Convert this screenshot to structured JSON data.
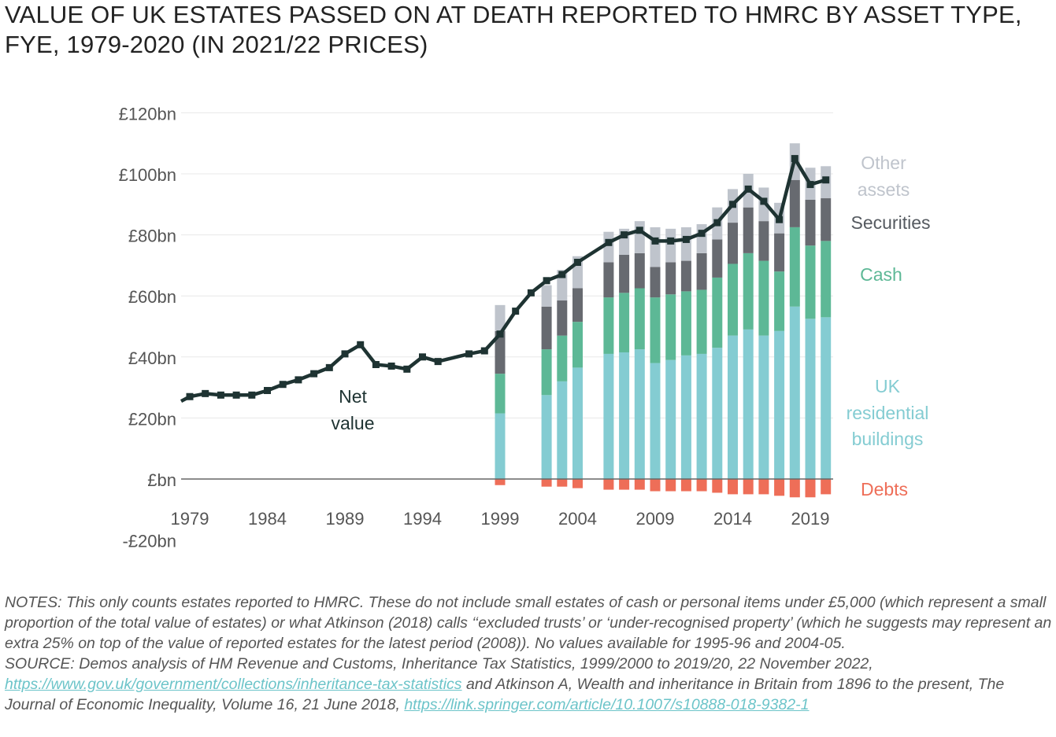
{
  "title": "VALUE OF UK ESTATES PASSED ON AT DEATH REPORTED TO HMRC BY ASSET TYPE, FYE, 1979-2020 (IN 2021/22 PRICES)",
  "chart_data": {
    "type": "bar",
    "stacked": true,
    "title": "VALUE OF UK ESTATES PASSED ON AT DEATH REPORTED TO HMRC BY ASSET TYPE, FYE, 1979-2020 (IN 2021/22 PRICES)",
    "xlabel": "",
    "ylabel": "",
    "ylim": [
      -20,
      120
    ],
    "y_ticks": [
      -20,
      0,
      20,
      40,
      60,
      80,
      100,
      120
    ],
    "y_tick_labels": [
      "-£20bn",
      "£bn",
      "£20bn",
      "£40bn",
      "£60bn",
      "£80bn",
      "£100bn",
      "£120bn"
    ],
    "x_tick_labels": [
      "1979",
      "1984",
      "1989",
      "1994",
      "1999",
      "2004",
      "2009",
      "2014",
      "2019"
    ],
    "legend_position": "right",
    "colors": {
      "uk_residential": "#84ccd2",
      "cash": "#5db896",
      "securities": "#676a70",
      "other": "#bfc4cc",
      "debts": "#ee6e58",
      "net": "#1e3332"
    },
    "categories": [
      "1999",
      "2002",
      "2003",
      "2004",
      "2006",
      "2007",
      "2008",
      "2009",
      "2010",
      "2011",
      "2012",
      "2013",
      "2014",
      "2015",
      "2016",
      "2017",
      "2018",
      "2019",
      "2020"
    ],
    "series": [
      {
        "name": "UK residential buildings",
        "values": [
          21.5,
          27.5,
          32,
          36.5,
          41,
          41.5,
          42.5,
          38,
          39,
          40.5,
          41,
          43,
          47,
          49,
          47,
          48.5,
          56.5,
          52.5,
          53
        ]
      },
      {
        "name": "Cash",
        "values": [
          13,
          15,
          15,
          15,
          18.5,
          19.5,
          20,
          21.5,
          21.5,
          21,
          21,
          23,
          23.5,
          25,
          24.5,
          19.5,
          26,
          24,
          25
        ]
      },
      {
        "name": "Securities",
        "values": [
          14,
          14,
          11.5,
          11,
          11.5,
          12.5,
          11.5,
          10,
          10.5,
          10,
          12,
          12.5,
          13.5,
          15,
          13,
          12.5,
          15.5,
          15,
          14
        ]
      },
      {
        "name": "Other assets",
        "values": [
          8.5,
          7,
          10,
          10.5,
          10,
          8.5,
          10.5,
          13,
          11,
          11,
          9.5,
          10.5,
          11,
          11,
          11,
          10,
          12,
          10.5,
          10.5
        ]
      },
      {
        "name": "Debts",
        "values": [
          -2,
          -2.5,
          -2.5,
          -3,
          -3.5,
          -3.5,
          -3.5,
          -4,
          -4,
          -4,
          -4,
          -4.5,
          -5,
          -5,
          -5,
          -5.5,
          -6,
          -6,
          -5
        ]
      }
    ],
    "net_value": {
      "name": "Net value",
      "x": [
        1978,
        1979,
        1980,
        1981,
        1982,
        1983,
        1984,
        1985,
        1986,
        1987,
        1988,
        1989,
        1990,
        1991,
        1992,
        1993,
        1994,
        1995,
        1997,
        1998,
        1999,
        2000,
        2001,
        2002,
        2003,
        2004,
        2006,
        2007,
        2008,
        2009,
        2010,
        2011,
        2012,
        2013,
        2014,
        2015,
        2016,
        2017,
        2018,
        2019,
        2020
      ],
      "values": [
        25.5,
        27,
        28,
        27.5,
        27.5,
        27.5,
        29,
        31,
        32.5,
        34.5,
        36.5,
        41,
        44,
        37.5,
        37,
        36,
        40,
        38.5,
        41,
        42,
        47.5,
        55,
        61,
        65,
        67,
        71,
        77.5,
        80,
        81.5,
        78,
        78,
        78.5,
        80.5,
        84,
        90,
        95,
        91,
        85,
        105,
        96.5,
        98
      ]
    },
    "annotations": {
      "net_line1": "Net",
      "net_line2": "value",
      "other_line1": "Other",
      "other_line2": "assets",
      "securities": "Securities",
      "cash": "Cash",
      "uk_line1": "UK",
      "uk_line2": "residential",
      "uk_line3": "buildings",
      "debts": "Debts"
    }
  },
  "notes": {
    "text1": "NOTES: This only counts estates reported to HMRC. These do not include small estates of cash or personal items under £5,000 (which represent a small proportion of the total value of estates) or what Atkinson (2018) calls ‘‘excluded trusts’ or ‘under-recognised property’ (which he suggests may represent an extra 25% on top of the value of reported estates for the latest period (2008)). No values available for 1995-96 and 2004-05.",
    "source_prefix": "SOURCE: Demos analysis of HM Revenue and Customs, Inheritance Tax Statistics, 1999/2000 to 2019/20, 22 November 2022, ",
    "source_link1": "https://www.gov.uk/government/collections/inheritance-tax-statistics",
    "source_middle": " and Atkinson A, Wealth and inheritance in Britain from 1896 to the present, The Journal of Economic Inequality, Volume 16, 21 June 2018, ",
    "source_link2": "https://link.springer.com/article/10.1007/s10888-018-9382-1"
  }
}
